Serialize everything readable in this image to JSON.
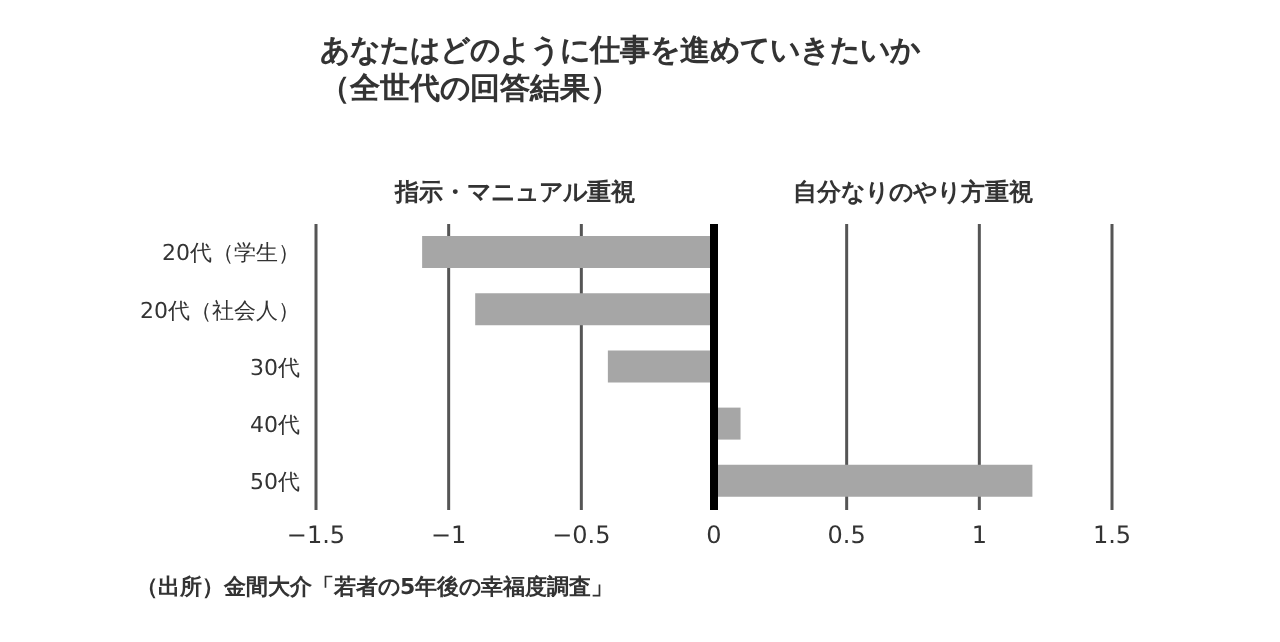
{
  "chart_data": {
    "type": "bar",
    "orientation": "horizontal",
    "title": "あなたはどのように仕事を進めていきたいか（全世代の回答結果）",
    "categories": [
      "20代（学生）",
      "20代（社会人）",
      "30代",
      "40代",
      "50代"
    ],
    "values": [
      -1.1,
      -0.9,
      -0.4,
      0.1,
      1.2
    ],
    "color": "#a6a6a6",
    "xlim": [
      -1.5,
      1.5
    ],
    "xticks": [
      -1.5,
      -1,
      -0.5,
      0,
      0.5,
      1,
      1.5
    ],
    "grid": "x",
    "ref_lines": [
      {
        "axis": "x",
        "value": 0,
        "color": "#000000"
      }
    ],
    "annotations": [
      "指示・マニュアル重視",
      "自分なりのやり方重視",
      "（出所）金間大介「若者の5年後の幸福度調査」"
    ]
  }
}
